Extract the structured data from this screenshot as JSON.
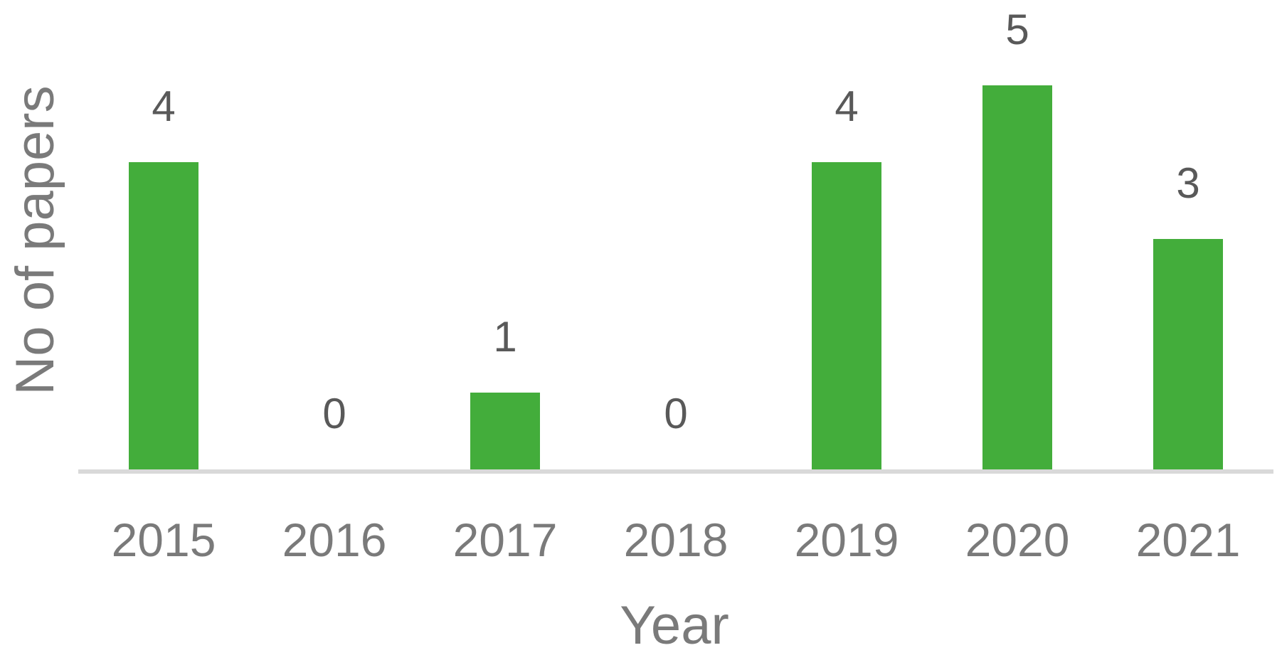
{
  "chart_data": {
    "type": "bar",
    "title": "",
    "xlabel": "Year",
    "ylabel": "No of papers",
    "categories": [
      "2015",
      "2016",
      "2017",
      "2018",
      "2019",
      "2020",
      "2021"
    ],
    "values": [
      4,
      0,
      1,
      0,
      4,
      5,
      3
    ],
    "ylim": [
      0,
      5
    ],
    "grid": false,
    "legend": "none",
    "data_labels": true,
    "bar_color": "#43ad3b"
  }
}
